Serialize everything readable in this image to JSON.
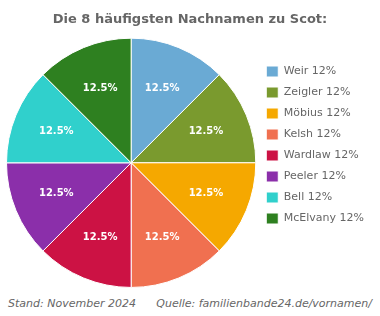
{
  "chart_data": {
    "type": "pie",
    "title": "Die 8 häufigsten Nachnamen zu Scot:",
    "categories": [
      "Weir 12%",
      "Zeigler 12%",
      "Möbius 12%",
      "Kelsh 12%",
      "Wardlaw 12%",
      "Peeler 12%",
      "Bell 12%",
      "McElvany 12%"
    ],
    "values": [
      12.5,
      12.5,
      12.5,
      12.5,
      12.5,
      12.5,
      12.5,
      12.5
    ],
    "value_labels": [
      "12.5%",
      "12.5%",
      "12.5%",
      "12.5%",
      "12.5%",
      "12.5%",
      "12.5%",
      "12.5%"
    ],
    "colors": [
      "#6aaad4",
      "#7a9a2e",
      "#f5a800",
      "#f07050",
      "#cc1244",
      "#8b2faa",
      "#30d0cc",
      "#2e8020"
    ],
    "data_labels": true,
    "legend": "right",
    "annotations": [
      "Stand: November 2024",
      "Quelle: familienbande24.de/vornamen/"
    ]
  }
}
